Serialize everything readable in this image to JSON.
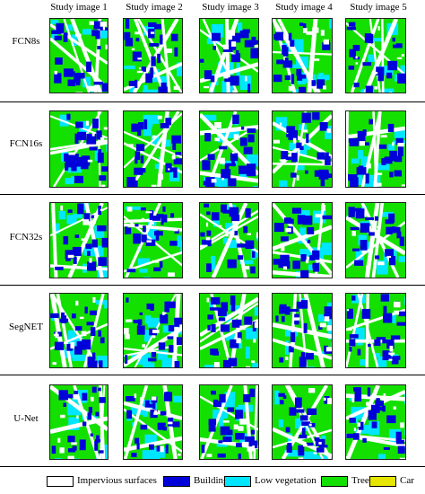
{
  "columns": [
    "Study image 1",
    "Study image 2",
    "Study image 3",
    "Study image 4",
    "Study image 5"
  ],
  "rows": [
    "FCN8s",
    "FCN16s",
    "FCN32s",
    "SegNET",
    "U-Net"
  ],
  "legend": [
    {
      "label": "Impervious surfaces",
      "color": "#ffffff",
      "icon": "impervious-swatch"
    },
    {
      "label": "Building",
      "color": "#0000d8",
      "icon": "building-swatch"
    },
    {
      "label": "Low vegetation",
      "color": "#00e6ff",
      "icon": "low-vegetation-swatch"
    },
    {
      "label": "Tree",
      "color": "#14e000",
      "icon": "tree-swatch"
    },
    {
      "label": "Car",
      "color": "#e6e600",
      "icon": "car-swatch"
    }
  ]
}
